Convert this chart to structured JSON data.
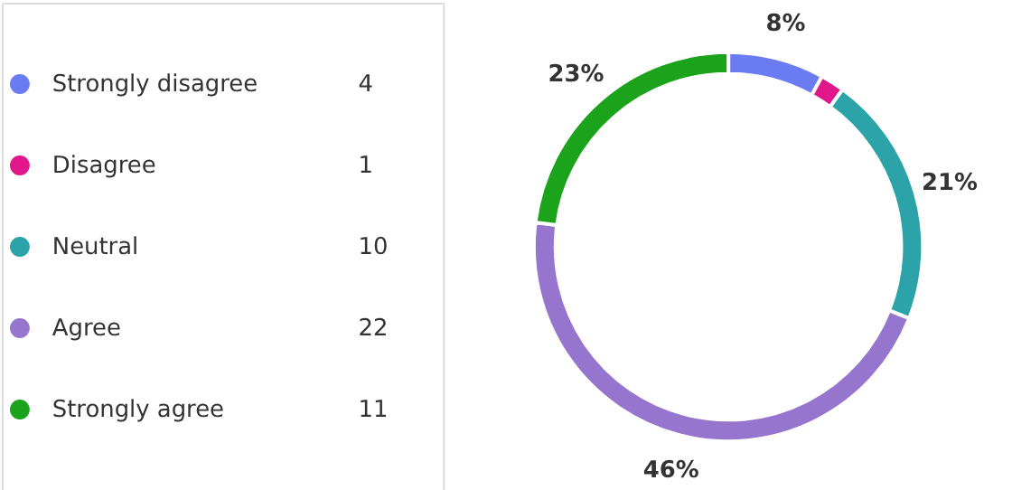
{
  "chart_data": {
    "type": "donut",
    "categories": [
      "Strongly disagree",
      "Disagree",
      "Neutral",
      "Agree",
      "Strongly agree"
    ],
    "values": [
      8,
      2,
      21,
      46,
      23
    ],
    "annotations": [
      "4",
      "1",
      "10",
      "22",
      "11"
    ],
    "colors": [
      "#6b7cf2",
      "#e0168a",
      "#2ba3a8",
      "#9575cd",
      "#1ba31b"
    ],
    "value_labels": [
      "8%",
      null,
      "21%",
      "46%",
      "23%"
    ],
    "legend": "left"
  }
}
